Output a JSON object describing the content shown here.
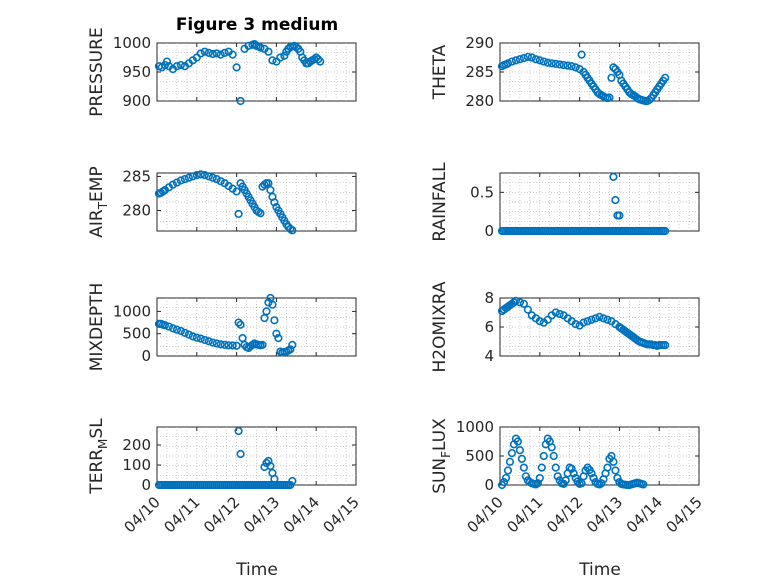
{
  "figure": {
    "title": "Figure 3 medium",
    "marker_color": "#0072BD",
    "x_axis_label": "Time",
    "x_tick_labels": [
      "04/10",
      "04/11",
      "04/12",
      "04/13",
      "04/14",
      "04/15"
    ]
  },
  "chart_data": [
    {
      "type": "scatter",
      "ylabel_main": "PRESSURE",
      "ylabel_sub": "",
      "ylabel_tail": "",
      "ylim": [
        900,
        1000
      ],
      "yticks": [
        900,
        950,
        1000
      ],
      "ytick_labels": [
        "900",
        "950",
        "1000"
      ],
      "xlim": [
        0,
        5
      ],
      "grid": true,
      "x": [
        0.05,
        0.12,
        0.2,
        0.25,
        0.3,
        0.4,
        0.5,
        0.6,
        0.7,
        0.8,
        0.9,
        1.0,
        1.1,
        1.2,
        1.3,
        1.4,
        1.5,
        1.6,
        1.7,
        1.8,
        1.9,
        2.0,
        2.1,
        2.2,
        2.3,
        2.4,
        2.45,
        2.5,
        2.55,
        2.6,
        2.7,
        2.8,
        2.9,
        3.0,
        3.1,
        3.2,
        3.25,
        3.3,
        3.35,
        3.4,
        3.45,
        3.5,
        3.55,
        3.6,
        3.65,
        3.7,
        3.75,
        3.8,
        3.85,
        3.9,
        3.95,
        4.0,
        4.05,
        4.1
      ],
      "y": [
        960,
        958,
        962,
        968,
        960,
        955,
        960,
        962,
        960,
        965,
        970,
        975,
        982,
        985,
        983,
        981,
        982,
        980,
        983,
        985,
        980,
        958,
        900,
        990,
        995,
        997,
        998,
        995,
        994,
        992,
        990,
        985,
        970,
        968,
        975,
        978,
        985,
        990,
        993,
        994,
        995,
        993,
        990,
        985,
        975,
        970,
        965,
        965,
        968,
        970,
        972,
        975,
        972,
        968
      ]
    },
    {
      "type": "scatter",
      "ylabel_main": "THETA",
      "ylabel_sub": "",
      "ylabel_tail": "",
      "ylim": [
        280,
        290
      ],
      "yticks": [
        280,
        285,
        290
      ],
      "ytick_labels": [
        "280",
        "285",
        "290"
      ],
      "xlim": [
        0,
        5
      ],
      "grid": true,
      "x": [
        0.05,
        0.1,
        0.15,
        0.2,
        0.3,
        0.4,
        0.5,
        0.6,
        0.7,
        0.8,
        0.9,
        1.0,
        1.1,
        1.2,
        1.3,
        1.4,
        1.5,
        1.6,
        1.7,
        1.8,
        1.9,
        2.0,
        2.05,
        2.1,
        2.15,
        2.2,
        2.25,
        2.3,
        2.35,
        2.4,
        2.45,
        2.5,
        2.55,
        2.6,
        2.65,
        2.7,
        2.75,
        2.8,
        2.85,
        2.9,
        2.95,
        3.0,
        3.05,
        3.1,
        3.15,
        3.2,
        3.25,
        3.3,
        3.35,
        3.4,
        3.45,
        3.5,
        3.55,
        3.6,
        3.65,
        3.7,
        3.75,
        3.8,
        3.85,
        3.9,
        3.95,
        4.0,
        4.05,
        4.1,
        4.15
      ],
      "y": [
        286,
        286.2,
        286.3,
        286.5,
        286.8,
        287,
        287.2,
        287.4,
        287.6,
        287.5,
        287.2,
        287,
        286.8,
        286.6,
        286.5,
        286.4,
        286.3,
        286.2,
        286.1,
        286,
        285.8,
        285.5,
        288,
        285,
        284.5,
        284,
        283.5,
        283,
        282.5,
        282,
        281.5,
        281.2,
        281,
        280.8,
        280.6,
        280.5,
        280.6,
        284,
        285.8,
        285.5,
        285,
        284.5,
        283.5,
        283,
        282.5,
        282,
        281.5,
        281.2,
        281,
        280.8,
        280.5,
        280.3,
        280.2,
        280.1,
        280,
        280,
        280.2,
        280.5,
        281,
        281.5,
        282,
        282.5,
        283,
        283.5,
        284
      ]
    },
    {
      "type": "scatter",
      "ylabel_main": "AIR",
      "ylabel_sub": "T",
      "ylabel_tail": "EMP",
      "ylim": [
        277,
        285.5
      ],
      "yticks": [
        280,
        285
      ],
      "ytick_labels": [
        "280",
        "285"
      ],
      "xlim": [
        0,
        5
      ],
      "grid": true,
      "x": [
        0.05,
        0.1,
        0.15,
        0.2,
        0.3,
        0.4,
        0.5,
        0.6,
        0.7,
        0.8,
        0.9,
        1.0,
        1.1,
        1.2,
        1.3,
        1.4,
        1.5,
        1.6,
        1.7,
        1.8,
        1.9,
        2.0,
        2.05,
        2.1,
        2.15,
        2.2,
        2.25,
        2.3,
        2.35,
        2.4,
        2.45,
        2.5,
        2.55,
        2.6,
        2.65,
        2.7,
        2.75,
        2.8,
        2.85,
        2.9,
        2.95,
        3.0,
        3.05,
        3.1,
        3.15,
        3.2,
        3.25,
        3.3,
        3.35,
        3.4
      ],
      "y": [
        282.5,
        282.6,
        282.8,
        283,
        283.4,
        283.8,
        284.1,
        284.4,
        284.6,
        284.8,
        285,
        285.2,
        285.3,
        285.2,
        285,
        284.8,
        284.6,
        284.3,
        284,
        283.6,
        283.2,
        282.8,
        279.5,
        284,
        283.5,
        283,
        282.5,
        282,
        281.5,
        281,
        280.5,
        280,
        279.8,
        279.6,
        283.5,
        283.8,
        284,
        284,
        283,
        282,
        281.2,
        280.5,
        280,
        279.5,
        279,
        278.5,
        278,
        277.6,
        277.3,
        277.1
      ]
    },
    {
      "type": "scatter",
      "ylabel_main": "RAINFALL",
      "ylabel_sub": "",
      "ylabel_tail": "",
      "ylim": [
        0,
        0.75
      ],
      "yticks": [
        0,
        0.5
      ],
      "ytick_labels": [
        "0",
        "0.5"
      ],
      "xlim": [
        0,
        5
      ],
      "grid": true,
      "x": [
        0.05,
        0.1,
        0.15,
        0.2,
        0.25,
        0.3,
        0.35,
        0.4,
        0.45,
        0.5,
        0.55,
        0.6,
        0.65,
        0.7,
        0.75,
        0.8,
        0.85,
        0.9,
        0.95,
        1.0,
        1.05,
        1.1,
        1.15,
        1.2,
        1.25,
        1.3,
        1.35,
        1.4,
        1.45,
        1.5,
        1.55,
        1.6,
        1.65,
        1.7,
        1.75,
        1.8,
        1.85,
        1.9,
        1.95,
        2.0,
        2.05,
        2.1,
        2.15,
        2.2,
        2.25,
        2.3,
        2.35,
        2.4,
        2.45,
        2.5,
        2.55,
        2.6,
        2.65,
        2.7,
        2.75,
        2.8,
        2.85,
        2.9,
        2.95,
        3.0,
        3.05,
        3.1,
        3.15,
        3.2,
        3.25,
        3.3,
        3.35,
        3.4,
        3.45,
        3.5,
        3.55,
        3.6,
        3.65,
        3.7,
        3.75,
        3.8,
        3.85,
        3.9,
        3.95,
        4.0,
        4.05,
        4.1,
        4.15,
        2.85,
        2.9,
        2.95,
        3.0
      ],
      "y": [
        0,
        0,
        0,
        0,
        0,
        0,
        0,
        0,
        0,
        0,
        0,
        0,
        0,
        0,
        0,
        0,
        0,
        0,
        0,
        0,
        0,
        0,
        0,
        0,
        0,
        0,
        0,
        0,
        0,
        0,
        0,
        0,
        0,
        0,
        0,
        0,
        0,
        0,
        0,
        0,
        0,
        0,
        0,
        0,
        0,
        0,
        0,
        0,
        0,
        0,
        0,
        0,
        0,
        0,
        0,
        0,
        0,
        0,
        0,
        0,
        0,
        0,
        0,
        0,
        0,
        0,
        0,
        0,
        0,
        0,
        0,
        0,
        0,
        0,
        0,
        0,
        0,
        0,
        0,
        0,
        0,
        0,
        0,
        0.7,
        0.4,
        0.2,
        0.2
      ]
    },
    {
      "type": "scatter",
      "ylabel_main": "MIXDEPTH",
      "ylabel_sub": "",
      "ylabel_tail": "",
      "ylim": [
        0,
        1300
      ],
      "yticks": [
        0,
        500,
        1000
      ],
      "ytick_labels": [
        "0",
        "500",
        "1000"
      ],
      "xlim": [
        0,
        5
      ],
      "grid": true,
      "x": [
        0.05,
        0.1,
        0.15,
        0.2,
        0.3,
        0.4,
        0.5,
        0.6,
        0.7,
        0.8,
        0.9,
        1.0,
        1.1,
        1.2,
        1.3,
        1.4,
        1.5,
        1.6,
        1.7,
        1.8,
        1.9,
        2.0,
        2.05,
        2.1,
        2.15,
        2.2,
        2.25,
        2.3,
        2.35,
        2.4,
        2.45,
        2.5,
        2.55,
        2.6,
        2.65,
        2.7,
        2.75,
        2.8,
        2.85,
        2.9,
        2.95,
        3.0,
        3.05,
        3.1,
        3.15,
        3.2,
        3.25,
        3.3,
        3.35,
        3.4
      ],
      "y": [
        720,
        720,
        700,
        690,
        660,
        620,
        590,
        560,
        520,
        480,
        440,
        410,
        390,
        360,
        330,
        300,
        280,
        260,
        250,
        240,
        235,
        230,
        750,
        700,
        400,
        250,
        200,
        180,
        220,
        250,
        280,
        260,
        250,
        240,
        250,
        850,
        1000,
        1200,
        1300,
        1150,
        800,
        500,
        400,
        100,
        80,
        90,
        100,
        120,
        150,
        250
      ]
    },
    {
      "type": "scatter",
      "ylabel_main": "H2OMIXRA",
      "ylabel_sub": "",
      "ylabel_tail": "",
      "ylim": [
        4,
        8
      ],
      "yticks": [
        4,
        6,
        8
      ],
      "ytick_labels": [
        "4",
        "6",
        "8"
      ],
      "xlim": [
        0,
        5
      ],
      "grid": true,
      "x": [
        0.05,
        0.1,
        0.15,
        0.2,
        0.25,
        0.3,
        0.35,
        0.4,
        0.5,
        0.6,
        0.7,
        0.8,
        0.9,
        1.0,
        1.1,
        1.2,
        1.3,
        1.4,
        1.5,
        1.6,
        1.7,
        1.8,
        1.9,
        2.0,
        2.1,
        2.2,
        2.3,
        2.4,
        2.5,
        2.6,
        2.7,
        2.8,
        2.9,
        3.0,
        3.05,
        3.1,
        3.15,
        3.2,
        3.25,
        3.3,
        3.35,
        3.4,
        3.45,
        3.5,
        3.55,
        3.6,
        3.65,
        3.7,
        3.75,
        3.8,
        3.85,
        3.9,
        3.95,
        4.0,
        4.05,
        4.1,
        4.15
      ],
      "y": [
        7.1,
        7.2,
        7.3,
        7.4,
        7.5,
        7.6,
        7.7,
        7.8,
        7.7,
        7.6,
        7.2,
        6.8,
        6.6,
        6.4,
        6.3,
        6.5,
        6.8,
        7.0,
        6.9,
        6.8,
        6.6,
        6.4,
        6.2,
        6.1,
        6.3,
        6.4,
        6.5,
        6.6,
        6.7,
        6.6,
        6.5,
        6.4,
        6.2,
        6.0,
        5.9,
        5.8,
        5.7,
        5.6,
        5.5,
        5.4,
        5.3,
        5.2,
        5.1,
        5.0,
        4.95,
        4.9,
        4.85,
        4.8,
        4.8,
        4.8,
        4.75,
        4.75,
        4.7,
        4.75,
        4.75,
        4.75,
        4.75
      ]
    },
    {
      "type": "scatter",
      "ylabel_main": "TERR",
      "ylabel_sub": "M",
      "ylabel_tail": "SL",
      "ylim": [
        0,
        290
      ],
      "yticks": [
        0,
        100,
        200
      ],
      "ytick_labels": [
        "0",
        "100",
        "200"
      ],
      "xlim": [
        0,
        5
      ],
      "grid": true,
      "x": [
        0.05,
        0.1,
        0.15,
        0.2,
        0.25,
        0.3,
        0.35,
        0.4,
        0.45,
        0.5,
        0.55,
        0.6,
        0.65,
        0.7,
        0.75,
        0.8,
        0.85,
        0.9,
        0.95,
        1.0,
        1.05,
        1.1,
        1.15,
        1.2,
        1.25,
        1.3,
        1.35,
        1.4,
        1.45,
        1.5,
        1.55,
        1.6,
        1.65,
        1.7,
        1.75,
        1.8,
        1.85,
        1.9,
        1.95,
        2.0,
        2.05,
        2.1,
        2.15,
        2.2,
        2.25,
        2.3,
        2.35,
        2.4,
        2.45,
        2.5,
        2.55,
        2.6,
        2.65,
        2.7,
        2.75,
        2.8,
        2.85,
        2.9,
        2.95,
        3.0,
        3.05,
        3.1,
        3.15,
        3.2,
        3.25,
        3.3,
        3.35,
        3.4,
        2.05,
        2.1,
        2.7,
        2.75,
        2.8,
        2.85,
        2.9,
        2.95
      ],
      "y": [
        0,
        0,
        0,
        0,
        0,
        0,
        0,
        0,
        0,
        0,
        0,
        0,
        0,
        0,
        0,
        0,
        0,
        0,
        0,
        0,
        0,
        0,
        0,
        0,
        0,
        0,
        0,
        0,
        0,
        0,
        0,
        0,
        0,
        0,
        0,
        0,
        0,
        0,
        0,
        0,
        0,
        0,
        0,
        0,
        0,
        0,
        0,
        0,
        0,
        0,
        0,
        0,
        0,
        0,
        0,
        0,
        0,
        0,
        0,
        0,
        0,
        0,
        0,
        0,
        0,
        0,
        0,
        20,
        270,
        155,
        90,
        110,
        120,
        95,
        60,
        30
      ]
    },
    {
      "type": "scatter",
      "ylabel_main": "SUN",
      "ylabel_sub": "F",
      "ylabel_tail": "LUX",
      "ylim": [
        0,
        1000
      ],
      "yticks": [
        0,
        500,
        1000
      ],
      "ytick_labels": [
        "0",
        "500",
        "1000"
      ],
      "xlim": [
        0,
        5
      ],
      "grid": true,
      "x": [
        0.05,
        0.1,
        0.15,
        0.2,
        0.25,
        0.3,
        0.35,
        0.4,
        0.45,
        0.5,
        0.55,
        0.6,
        0.65,
        0.7,
        0.75,
        0.8,
        0.85,
        0.9,
        0.95,
        1.0,
        1.05,
        1.1,
        1.15,
        1.2,
        1.25,
        1.3,
        1.35,
        1.4,
        1.45,
        1.5,
        1.55,
        1.6,
        1.65,
        1.7,
        1.75,
        1.8,
        1.85,
        1.9,
        1.95,
        2.0,
        2.05,
        2.1,
        2.15,
        2.2,
        2.25,
        2.3,
        2.35,
        2.4,
        2.45,
        2.5,
        2.55,
        2.6,
        2.65,
        2.7,
        2.75,
        2.8,
        2.85,
        2.9,
        2.95,
        3.0,
        3.05,
        3.1,
        3.15,
        3.2,
        3.25,
        3.3,
        3.35,
        3.4,
        3.45,
        3.5,
        3.55,
        3.6
      ],
      "y": [
        0,
        50,
        120,
        250,
        400,
        550,
        700,
        800,
        750,
        600,
        450,
        300,
        150,
        80,
        50,
        30,
        20,
        10,
        30,
        120,
        300,
        500,
        700,
        800,
        750,
        650,
        500,
        300,
        150,
        80,
        30,
        20,
        80,
        200,
        300,
        280,
        200,
        120,
        60,
        20,
        30,
        150,
        250,
        300,
        260,
        200,
        120,
        50,
        20,
        10,
        30,
        100,
        200,
        300,
        450,
        500,
        400,
        250,
        120,
        50,
        20,
        10,
        5,
        0,
        0,
        10,
        20,
        30,
        40,
        30,
        20,
        10
      ]
    }
  ]
}
